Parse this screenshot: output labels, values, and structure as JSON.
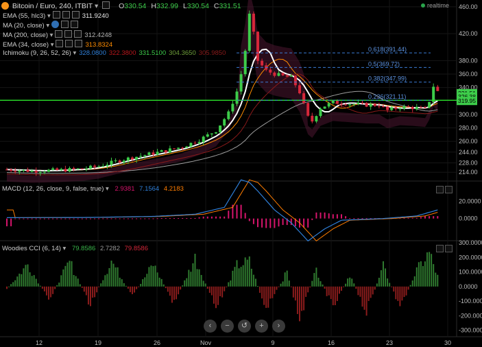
{
  "header": {
    "symbol": "Bitcoin / Euro, 240, ITBIT",
    "open_label": "O",
    "open": "330.54",
    "high_label": "H",
    "high": "332.99",
    "low_label": "L",
    "low": "330.54",
    "close_label": "C",
    "close": "331.51",
    "realtime": "realtime"
  },
  "legends": [
    {
      "name": "EMA (55, hlc3)",
      "value": "311.9240",
      "color": "#e8e8e8"
    },
    {
      "name": "MA (20, close)",
      "value": "",
      "color": "#ffffff"
    },
    {
      "name": "MA (200, close)",
      "value": "312.4248",
      "color": "#b0b0b0"
    },
    {
      "name": "EMA (34, close)",
      "value": "313.8324",
      "color": "#ff8c00"
    }
  ],
  "ichimoku": {
    "name": "Ichimoku (9, 26, 52, 26)",
    "values": [
      "328.0800",
      "322.3800",
      "331.5100",
      "304.3650",
      "305.9850"
    ],
    "colors": [
      "#2f7fd8",
      "#b8161b",
      "#3dcc4a",
      "#6e9e3a",
      "#8b1a1a"
    ]
  },
  "macd_title": {
    "name": "MACD (12, 26, close, 9, false, true)",
    "values": [
      "2.9381",
      "7.1564",
      "4.2183"
    ],
    "colors": [
      "#d6156c",
      "#2f7fd8",
      "#ff7d00"
    ]
  },
  "cci_title": {
    "name": "Woodies CCI (6, 14)",
    "values": [
      "79.8586",
      "2.7282",
      "79.8586"
    ],
    "colors": [
      "#39b54a",
      "#9a9a9a",
      "#d6273a"
    ]
  },
  "price_scale": [
    "460.00",
    "420.00",
    "380.00",
    "360.00",
    "340.00",
    "300.00",
    "280.00",
    "260.00",
    "244.00",
    "228.00",
    "214.00"
  ],
  "price_badges": [
    {
      "value": "331.51",
      "color": "#3dcc4a"
    },
    {
      "value": "326.38",
      "color": "#3dcc4a"
    },
    {
      "value": "319.95",
      "color": "#3dcc4a"
    }
  ],
  "macd_scale": [
    "20.0000",
    "0.0000"
  ],
  "cci_scale": [
    "300.0000",
    "200.0000",
    "100.0000",
    "0.0000",
    "-100.0000",
    "-200.0000",
    "-300.0000"
  ],
  "time_labels": [
    "12",
    "19",
    "26",
    "Nov",
    "9",
    "16",
    "23",
    "30"
  ],
  "fib_levels": [
    {
      "label": "0.618(391.44)",
      "price": 391.44
    },
    {
      "label": "0.5(369.72)",
      "price": 369.72
    },
    {
      "label": "0.382(347.99)",
      "price": 347.99
    },
    {
      "label": "0.236(321.11)",
      "price": 321.11
    }
  ],
  "nav_buttons": [
    {
      "name": "nav-back-button",
      "glyph": "‹"
    },
    {
      "name": "nav-zoom-out-button",
      "glyph": "−"
    },
    {
      "name": "nav-reset-button",
      "glyph": "↺"
    },
    {
      "name": "nav-zoom-in-button",
      "glyph": "+"
    },
    {
      "name": "nav-forward-button",
      "glyph": "›"
    }
  ],
  "colors": {
    "up": "#3dcc4a",
    "down": "#d6273a",
    "horizontal_line": "#28d628",
    "fib": "#3a7bd5",
    "ema34": "#ff8c00",
    "ma20": "#ffffff",
    "cloud_bull": "#1d4d1d",
    "cloud_bear": "#4a1630"
  },
  "chart_data": {
    "type": "candlestick",
    "title": "Bitcoin / Euro, 240, ITBIT",
    "x_ticks": [
      "12",
      "19",
      "26",
      "Nov",
      "9",
      "16",
      "23",
      "30"
    ],
    "y_ticks": [
      460,
      420,
      380,
      360,
      340,
      300,
      280,
      260,
      244,
      228,
      214
    ],
    "ylim": [
      203,
      470
    ],
    "horizontal_line": 321,
    "close_path": [
      [
        0,
        218
      ],
      [
        6,
        216
      ],
      [
        12,
        217
      ],
      [
        18,
        219
      ],
      [
        22,
        223
      ],
      [
        26,
        230
      ],
      [
        30,
        236
      ],
      [
        34,
        241
      ],
      [
        38,
        246
      ],
      [
        42,
        252
      ],
      [
        46,
        262
      ],
      [
        50,
        276
      ],
      [
        53,
        302
      ],
      [
        55,
        334
      ],
      [
        56,
        360
      ],
      [
        57,
        395
      ],
      [
        58,
        448
      ],
      [
        59,
        420
      ],
      [
        60,
        380
      ],
      [
        62,
        365
      ],
      [
        64,
        360
      ],
      [
        66,
        357
      ],
      [
        68,
        355
      ],
      [
        70,
        333
      ],
      [
        72,
        296
      ],
      [
        73,
        290
      ],
      [
        75,
        310
      ],
      [
        78,
        318
      ],
      [
        82,
        316
      ],
      [
        86,
        314
      ],
      [
        89,
        314
      ],
      [
        91,
        306
      ],
      [
        94,
        311
      ],
      [
        97,
        310
      ],
      [
        100,
        308
      ],
      [
        101,
        320
      ],
      [
        102,
        342
      ],
      [
        103,
        334
      ]
    ],
    "macd": [
      [
        0,
        1
      ],
      [
        20,
        1.3
      ],
      [
        35,
        2.5
      ],
      [
        45,
        5
      ],
      [
        52,
        13
      ],
      [
        56,
        45
      ],
      [
        58,
        42
      ],
      [
        60,
        32
      ],
      [
        64,
        10
      ],
      [
        68,
        -5
      ],
      [
        72,
        -26
      ],
      [
        76,
        -12
      ],
      [
        80,
        -2
      ],
      [
        90,
        0
      ],
      [
        98,
        3
      ],
      [
        103,
        10
      ]
    ],
    "cci_sample": [
      [
        0,
        -20
      ],
      [
        5,
        180
      ],
      [
        10,
        -110
      ],
      [
        15,
        200
      ],
      [
        20,
        -150
      ],
      [
        25,
        210
      ],
      [
        30,
        -80
      ],
      [
        35,
        180
      ],
      [
        40,
        -140
      ],
      [
        45,
        230
      ],
      [
        50,
        -180
      ],
      [
        55,
        170
      ],
      [
        58,
        200
      ],
      [
        62,
        -190
      ],
      [
        67,
        120
      ],
      [
        70,
        -260
      ],
      [
        74,
        140
      ],
      [
        78,
        -180
      ],
      [
        82,
        100
      ],
      [
        86,
        -210
      ],
      [
        90,
        160
      ],
      [
        94,
        -170
      ],
      [
        98,
        130
      ],
      [
        101,
        270
      ],
      [
        103,
        80
      ]
    ]
  }
}
